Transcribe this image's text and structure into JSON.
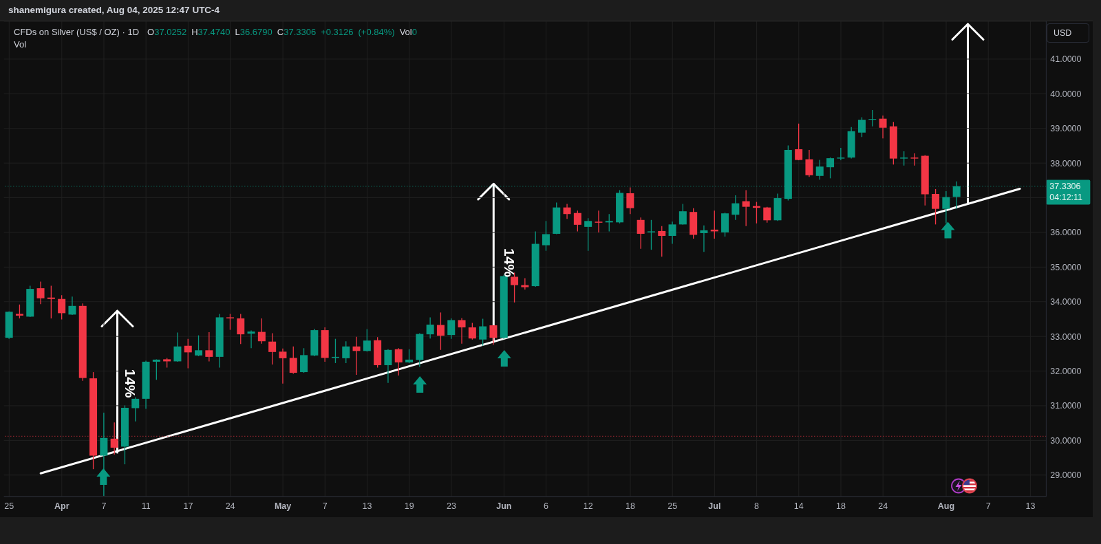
{
  "chart_data": {
    "type": "candlestick",
    "title": "CFDs on Silver (US$ / OZ) · 1D",
    "subtitle": "O37.0252 H37.4740 L36.6790 C37.3306 +0.3126 (+0.84%) Vol0",
    "categories": [
      "25",
      null,
      null,
      null,
      null,
      "Apr",
      null,
      null,
      null,
      "7",
      null,
      null,
      null,
      "11",
      null,
      null,
      null,
      "17",
      null,
      null,
      null,
      "24",
      null,
      null,
      null,
      null,
      "May",
      null,
      null,
      null,
      "7",
      null,
      null,
      null,
      "13",
      null,
      null,
      null,
      "19",
      null,
      null,
      null,
      "23",
      null,
      null,
      null,
      null,
      "Jun",
      null,
      null,
      null,
      "6",
      null,
      null,
      null,
      "12",
      null,
      null,
      null,
      "18",
      null,
      null,
      null,
      "25",
      null,
      null,
      null,
      "Jul",
      null,
      null,
      null,
      "8",
      null,
      null,
      null,
      "14",
      null,
      null,
      null,
      "18",
      null,
      null,
      null,
      "24",
      null,
      null,
      null,
      null,
      null,
      "Aug",
      null,
      null,
      null,
      "7",
      null,
      null,
      null,
      "13",
      null
    ],
    "ohlc": [
      [
        32.96,
        33.72,
        32.93,
        33.71
      ],
      [
        33.65,
        33.92,
        33.52,
        33.6
      ],
      [
        33.57,
        34.46,
        33.56,
        34.37
      ],
      [
        34.39,
        34.58,
        33.93,
        34.1
      ],
      [
        34.12,
        34.46,
        33.52,
        34.08
      ],
      [
        34.08,
        34.19,
        33.49,
        33.67
      ],
      [
        33.63,
        34.15,
        33.62,
        33.88
      ],
      [
        33.88,
        33.95,
        31.72,
        31.8
      ],
      [
        31.79,
        31.97,
        29.17,
        29.56
      ],
      [
        29.56,
        30.8,
        28.4,
        30.07
      ],
      [
        30.05,
        30.52,
        29.59,
        29.79
      ],
      [
        29.82,
        31.01,
        29.31,
        30.94
      ],
      [
        30.93,
        31.24,
        30.55,
        31.2
      ],
      [
        31.2,
        32.3,
        30.91,
        32.27
      ],
      [
        32.27,
        32.34,
        31.75,
        32.33
      ],
      [
        32.34,
        32.38,
        32.1,
        32.28
      ],
      [
        32.28,
        33.11,
        32.27,
        32.71
      ],
      [
        32.73,
        32.93,
        32.08,
        32.54
      ],
      [
        32.45,
        33.03,
        32.43,
        32.6
      ],
      [
        32.6,
        33.12,
        32.28,
        32.41
      ],
      [
        32.41,
        33.65,
        32.1,
        33.55
      ],
      [
        33.55,
        33.65,
        33.19,
        33.52
      ],
      [
        33.52,
        33.65,
        32.78,
        33.06
      ],
      [
        33.08,
        33.17,
        32.66,
        33.14
      ],
      [
        33.13,
        33.52,
        32.79,
        32.86
      ],
      [
        32.85,
        33.09,
        32.19,
        32.55
      ],
      [
        32.56,
        32.65,
        31.64,
        32.37
      ],
      [
        32.38,
        32.71,
        31.92,
        31.95
      ],
      [
        31.97,
        32.66,
        31.95,
        32.46
      ],
      [
        32.45,
        33.22,
        32.43,
        33.18
      ],
      [
        33.18,
        33.26,
        32.27,
        32.38
      ],
      [
        32.38,
        32.93,
        32.23,
        32.41
      ],
      [
        32.37,
        32.86,
        32.23,
        32.71
      ],
      [
        32.71,
        32.99,
        31.89,
        32.58
      ],
      [
        32.58,
        33.21,
        32.56,
        32.88
      ],
      [
        32.89,
        32.98,
        32.1,
        32.17
      ],
      [
        32.17,
        32.63,
        31.66,
        32.61
      ],
      [
        32.63,
        32.66,
        31.87,
        32.25
      ],
      [
        32.25,
        32.63,
        32.23,
        32.33
      ],
      [
        32.32,
        33.09,
        32.12,
        33.07
      ],
      [
        33.06,
        33.55,
        32.94,
        33.34
      ],
      [
        33.33,
        33.69,
        32.61,
        33.02
      ],
      [
        33.04,
        33.52,
        32.93,
        33.47
      ],
      [
        33.47,
        33.53,
        32.79,
        33.26
      ],
      [
        33.26,
        33.39,
        32.91,
        32.94
      ],
      [
        32.91,
        33.51,
        32.73,
        33.29
      ],
      [
        33.32,
        33.33,
        32.76,
        32.96
      ],
      [
        32.96,
        34.78,
        32.93,
        34.74
      ],
      [
        34.72,
        34.84,
        33.98,
        34.48
      ],
      [
        34.48,
        34.68,
        34.35,
        34.42
      ],
      [
        34.45,
        36.03,
        34.43,
        35.67
      ],
      [
        35.63,
        36.33,
        35.47,
        35.95
      ],
      [
        35.96,
        36.86,
        35.95,
        36.72
      ],
      [
        36.72,
        36.82,
        36.39,
        36.53
      ],
      [
        36.56,
        36.63,
        36.03,
        36.22
      ],
      [
        36.16,
        36.41,
        35.47,
        36.33
      ],
      [
        36.31,
        36.63,
        36,
        36.28
      ],
      [
        36.29,
        36.53,
        36.03,
        36.33
      ],
      [
        36.29,
        37.22,
        36.26,
        37.14
      ],
      [
        37.13,
        37.3,
        36.53,
        36.7
      ],
      [
        36.36,
        36.43,
        35.53,
        35.96
      ],
      [
        36,
        36.36,
        35.5,
        36.03
      ],
      [
        36.04,
        36.18,
        35.3,
        35.9
      ],
      [
        35.9,
        36.31,
        35.67,
        36.23
      ],
      [
        36.23,
        36.82,
        36.22,
        36.61
      ],
      [
        36.59,
        36.7,
        35.82,
        35.93
      ],
      [
        35.98,
        36.2,
        35.44,
        36.06
      ],
      [
        36.08,
        36.63,
        35.82,
        36.03
      ],
      [
        36,
        36.57,
        35.88,
        36.55
      ],
      [
        36.51,
        37.07,
        36.36,
        36.84
      ],
      [
        36.9,
        37.22,
        36.18,
        36.74
      ],
      [
        36.76,
        36.88,
        36.26,
        36.71
      ],
      [
        36.72,
        36.74,
        36.28,
        36.35
      ],
      [
        36.35,
        37.12,
        36.33,
        36.99
      ],
      [
        36.97,
        38.51,
        36.92,
        38.38
      ],
      [
        38.4,
        39.14,
        38.08,
        38.09
      ],
      [
        38.11,
        38.38,
        37.6,
        37.65
      ],
      [
        37.63,
        38.09,
        37.52,
        37.9
      ],
      [
        37.88,
        38.16,
        37.56,
        38.14
      ],
      [
        38.13,
        38.44,
        38.08,
        38.16
      ],
      [
        38.16,
        39.04,
        38.13,
        38.92
      ],
      [
        38.88,
        39.32,
        38.75,
        39.25
      ],
      [
        39.25,
        39.53,
        39.06,
        39.27
      ],
      [
        39.28,
        39.37,
        38.71,
        39.02
      ],
      [
        39.06,
        39.19,
        37.96,
        38.13
      ],
      [
        38.13,
        38.34,
        37.93,
        38.16
      ],
      [
        38.16,
        38.28,
        37.93,
        38.13
      ],
      [
        38.21,
        38.23,
        36.78,
        37.1
      ],
      [
        37.11,
        37.25,
        36.23,
        36.68
      ],
      [
        36.68,
        37.19,
        36.26,
        37.02
      ],
      [
        37.0252,
        37.474,
        36.679,
        37.3306
      ],
      null,
      null,
      null,
      null,
      null,
      null,
      null,
      null
    ],
    "colors": [
      "#089981",
      "#f23645",
      "#089981",
      "#f23645",
      "#f23645",
      "#f23645",
      "#089981",
      "#f23645",
      "#f23645",
      "#089981",
      "#f23645",
      "#089981",
      "#089981",
      "#089981",
      "#089981",
      "#f23645",
      "#089981",
      "#f23645",
      "#089981",
      "#f23645",
      "#089981",
      "#f23645",
      "#f23645",
      "#089981",
      "#f23645",
      "#f23645",
      "#f23645",
      "#f23645",
      "#089981",
      "#089981",
      "#f23645",
      "#089981",
      "#089981",
      "#f23645",
      "#089981",
      "#f23645",
      "#089981",
      "#f23645",
      "#089981",
      "#089981",
      "#089981",
      "#f23645",
      "#089981",
      "#f23645",
      "#f23645",
      "#089981",
      "#f23645",
      "#089981",
      "#f23645",
      "#f23645",
      "#089981",
      "#089981",
      "#089981",
      "#f23645",
      "#f23645",
      "#089981",
      "#f23645",
      "#089981",
      "#089981",
      "#f23645",
      "#f23645",
      "#089981",
      "#f23645",
      "#089981",
      "#089981",
      "#f23645",
      "#089981",
      "#f23645",
      "#089981",
      "#089981",
      "#f23645",
      "#f23645",
      "#f23645",
      "#089981",
      "#089981",
      "#f23645",
      "#f23645",
      "#089981",
      "#089981",
      "#089981",
      "#089981",
      "#089981",
      "#089981",
      "#f23645",
      "#f23645",
      "#089981",
      "#f23645",
      "#f23645",
      "#f23645",
      "#089981",
      "#089981",
      null,
      null,
      null,
      null,
      null,
      null,
      null,
      null
    ],
    "series": [
      {
        "type": "line",
        "color": "#ffffff",
        "values": [
          null,
          null,
          null,
          29.05,
          null,
          null,
          null,
          null,
          null,
          null,
          null,
          null,
          null,
          null,
          null,
          null,
          null,
          null,
          null,
          null,
          null,
          null,
          null,
          null,
          null,
          null,
          null,
          null,
          null,
          null,
          null,
          null,
          null,
          null,
          null,
          null,
          null,
          null,
          null,
          null,
          null,
          null,
          null,
          null,
          null,
          null,
          null,
          null,
          null,
          null,
          null,
          null,
          null,
          null,
          null,
          null,
          null,
          null,
          null,
          null,
          null,
          null,
          null,
          null,
          null,
          null,
          null,
          null,
          null,
          null,
          null,
          null,
          null,
          null,
          null,
          null,
          null,
          null,
          null,
          null,
          null,
          null,
          null,
          null,
          null,
          null,
          null,
          null,
          null,
          null,
          null,
          null,
          null,
          null,
          null,
          null,
          37.26,
          null,
          null
        ]
      }
    ],
    "ylim": [
      28.38,
      42.09
    ],
    "yticks": [
      {
        "value": 29,
        "label": "29.0000"
      },
      {
        "value": 30,
        "label": "30.0000"
      },
      {
        "value": 31,
        "label": "31.0000"
      },
      {
        "value": 32,
        "label": "32.0000"
      },
      {
        "value": 33,
        "label": "33.0000"
      },
      {
        "value": 34,
        "label": "34.0000"
      },
      {
        "value": 35,
        "label": "35.0000"
      },
      {
        "value": 36,
        "label": "36.0000"
      },
      {
        "value": 37,
        "label": null
      },
      {
        "value": 38,
        "label": "38.0000"
      },
      {
        "value": 39,
        "label": "39.0000"
      },
      {
        "value": 40,
        "label": "40.0000"
      },
      {
        "value": 41,
        "label": "41.0000"
      }
    ],
    "grid": true,
    "ref_lines": [
      {
        "axis": "y",
        "value": 37.3306,
        "label": "37.3306",
        "color": "#089981",
        "line_style": "dotted"
      },
      {
        "axis": "y",
        "value": 30.12,
        "color": "#f23645",
        "line_style": "dotted"
      }
    ],
    "annotations": [
      "shanemigura created, Aug 04, 2025 12:47 UTC-4",
      "Vol",
      "USD",
      "04:12:11",
      "14%",
      "14%"
    ]
  }
}
